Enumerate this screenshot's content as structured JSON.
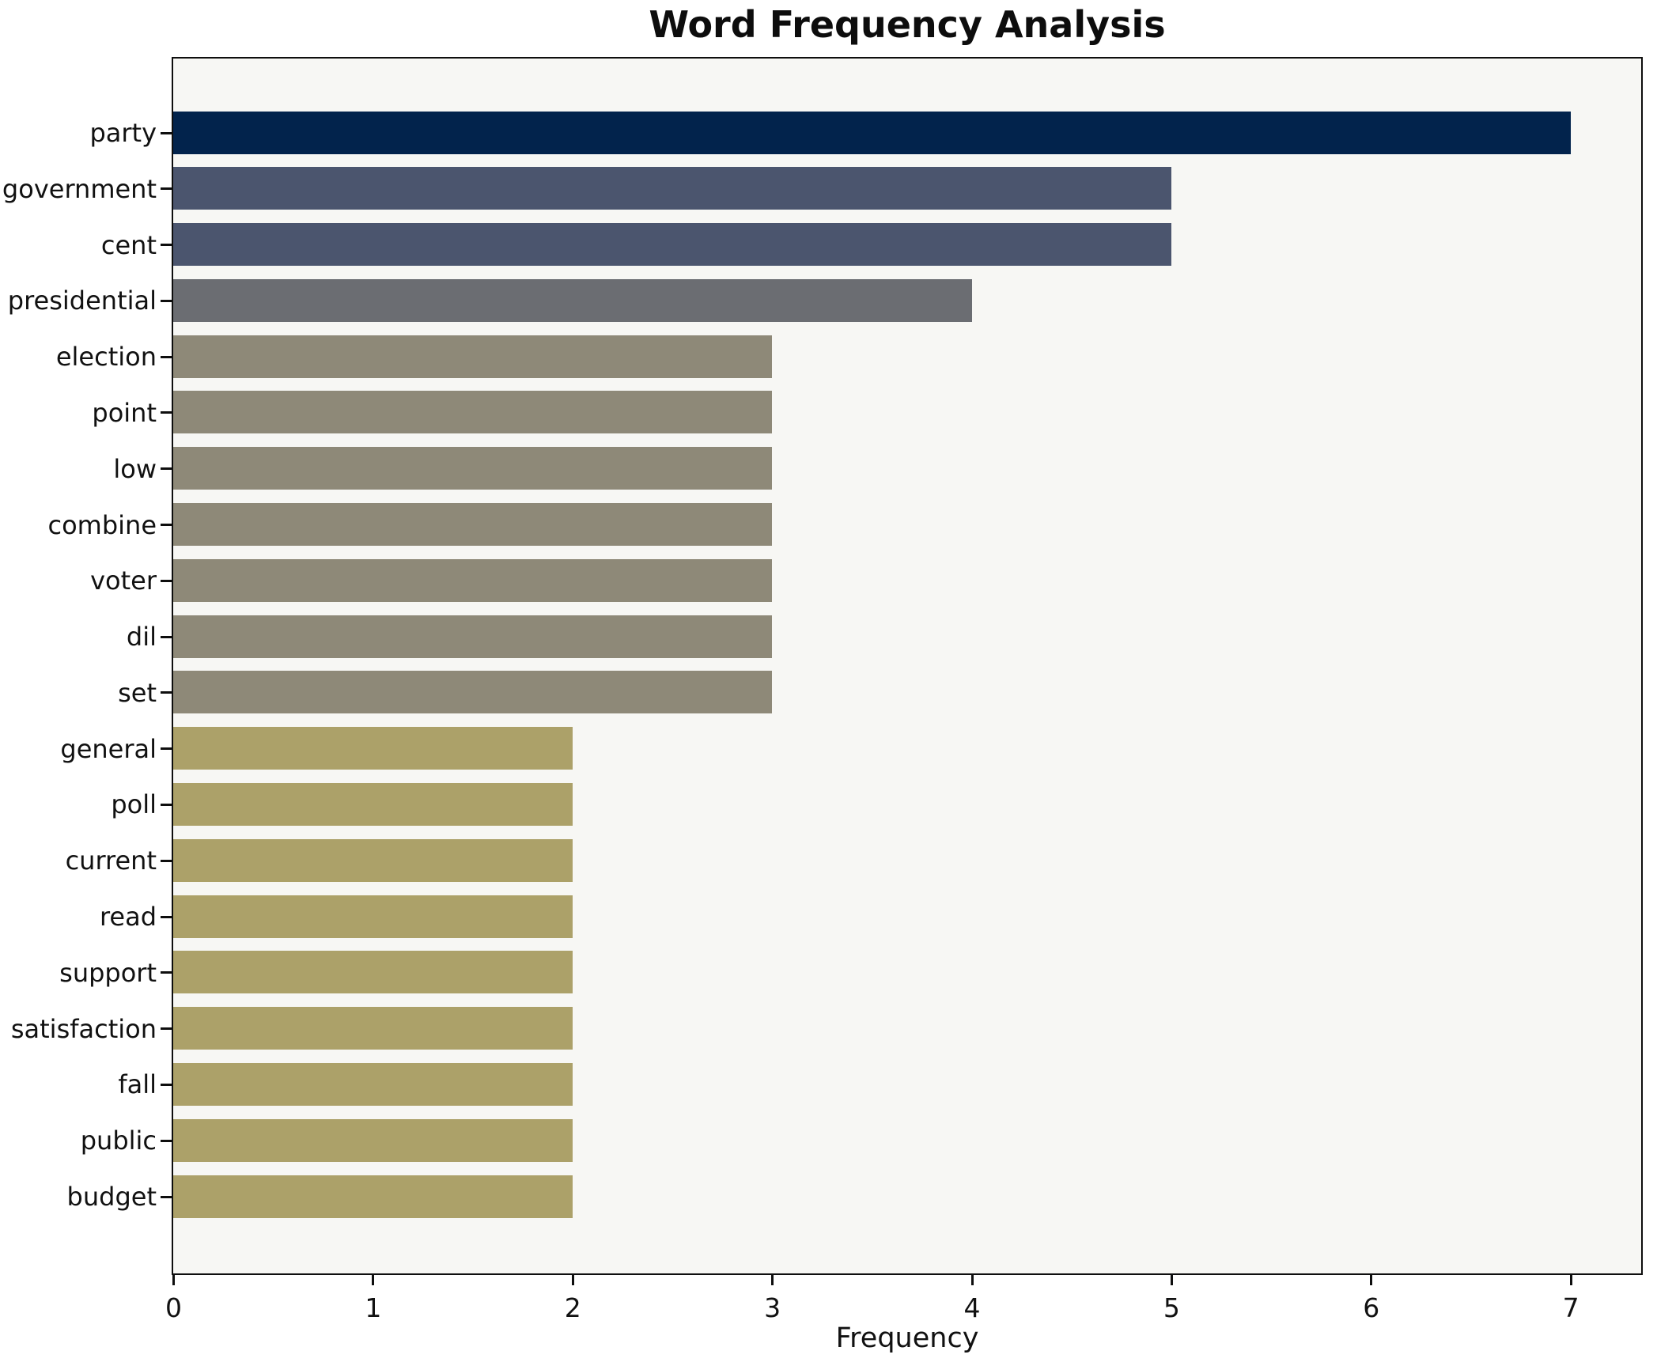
{
  "page_title": "Word Frequency Analysis",
  "chart_data": {
    "type": "bar",
    "orientation": "horizontal",
    "title": "Word Frequency Analysis",
    "xlabel": "Frequency",
    "ylabel": "",
    "categories": [
      "party",
      "government",
      "cent",
      "presidential",
      "election",
      "point",
      "low",
      "combine",
      "voter",
      "dil",
      "set",
      "general",
      "poll",
      "current",
      "read",
      "support",
      "satisfaction",
      "fall",
      "public",
      "budget"
    ],
    "values": [
      7,
      5,
      5,
      4,
      3,
      3,
      3,
      3,
      3,
      3,
      3,
      2,
      2,
      2,
      2,
      2,
      2,
      2,
      2,
      2
    ],
    "bar_colors": [
      "#02234c",
      "#4b556e",
      "#4b556e",
      "#6b6d72",
      "#8e8978",
      "#8e8978",
      "#8e8978",
      "#8e8978",
      "#8e8978",
      "#8e8978",
      "#8e8978",
      "#aca169",
      "#aca169",
      "#aca169",
      "#aca169",
      "#aca169",
      "#aca169",
      "#aca169",
      "#aca169",
      "#aca169"
    ],
    "xlim": [
      0,
      7.35
    ],
    "xticks": [
      "0",
      "1",
      "2",
      "3",
      "4",
      "5",
      "6",
      "7"
    ],
    "grid": false,
    "legend_position": "none",
    "plot_bg_color": "#f7f7f4",
    "axis_color": "#0e0e0e",
    "text_color": "#111111"
  }
}
